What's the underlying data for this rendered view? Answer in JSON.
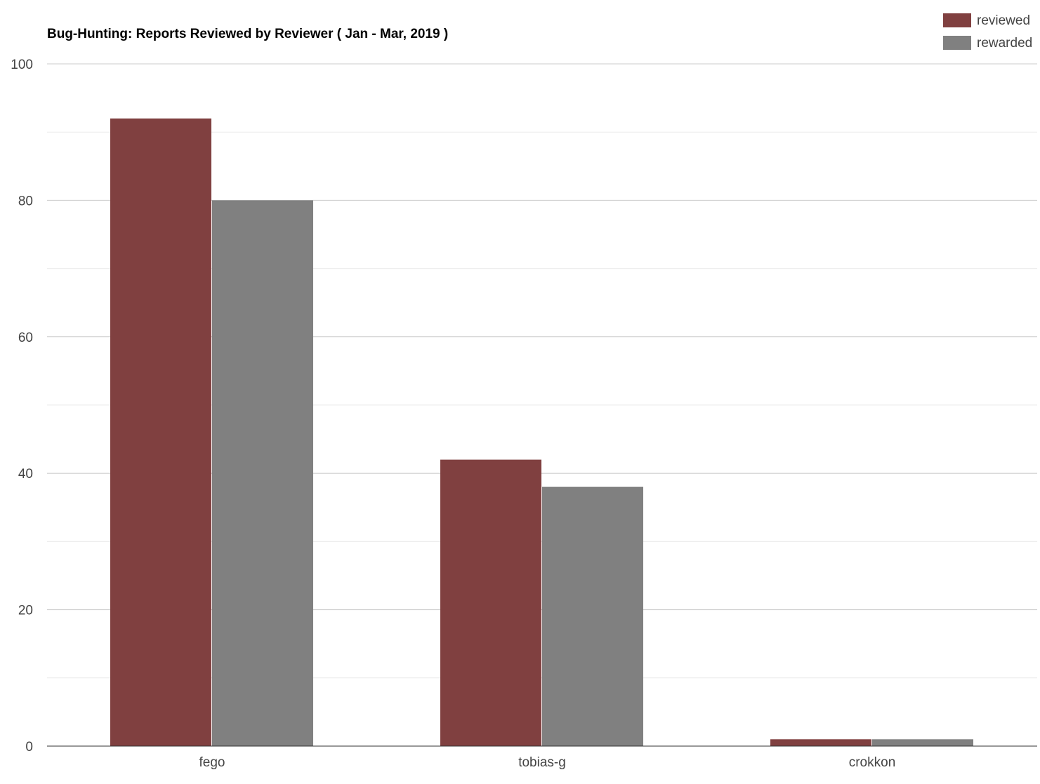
{
  "chart_data": {
    "type": "bar",
    "title": "Bug-Hunting: Reports Reviewed by Reviewer ( Jan - Mar, 2019 )",
    "xlabel": "",
    "ylabel": "",
    "categories": [
      "fego",
      "tobias-g",
      "crokkon"
    ],
    "series": [
      {
        "name": "reviewed",
        "values": [
          92,
          42,
          1
        ],
        "color": "#804040"
      },
      {
        "name": "rewarded",
        "values": [
          80,
          38,
          1
        ],
        "color": "#808080"
      }
    ],
    "ylim": [
      0,
      100
    ],
    "y_ticks": [
      "0",
      "20",
      "40",
      "60",
      "80",
      "100"
    ],
    "grid": true,
    "legend_position": "top-right"
  }
}
